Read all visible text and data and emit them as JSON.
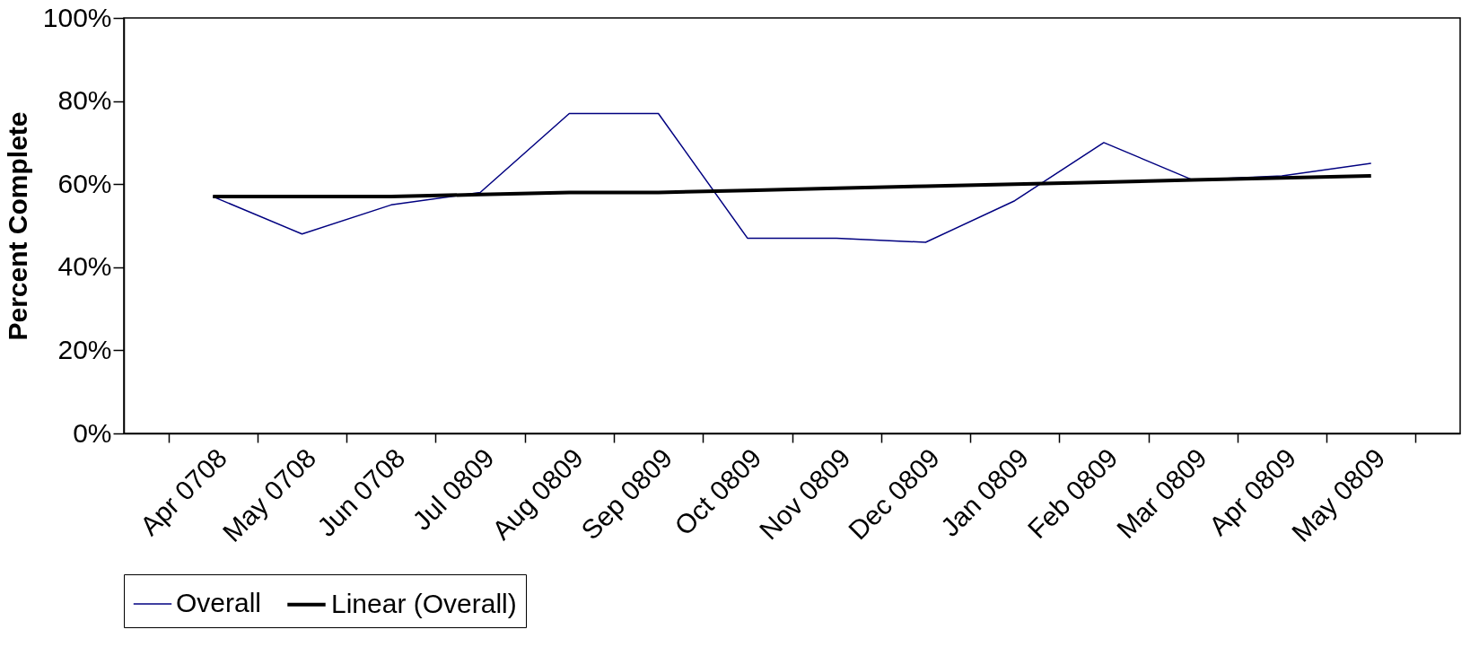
{
  "chart_data": {
    "type": "line",
    "ylabel": "Percent Complete",
    "categories": [
      "Apr 0708",
      "May 0708",
      "Jun 0708",
      "Jul 0809",
      "Aug 0809",
      "Sep 0809",
      "Oct 0809",
      "Nov 0809",
      "Dec 0809",
      "Jan 0809",
      "Feb 0809",
      "Mar 0809",
      "Apr 0809",
      "May 0809"
    ],
    "series": [
      {
        "name": "Overall",
        "color": "#000080",
        "values": [
          57,
          48,
          55,
          58,
          77,
          77,
          47,
          47,
          46,
          56,
          70,
          61,
          62,
          65
        ]
      },
      {
        "name": "Linear (Overall)",
        "color": "#000000",
        "values": [
          57,
          57,
          57,
          57.5,
          58,
          58,
          58.5,
          59,
          59.5,
          60,
          60.5,
          61,
          61.5,
          62
        ]
      }
    ],
    "ylim": [
      0,
      100
    ],
    "yticks": [
      {
        "value": 0,
        "label": "0%"
      },
      {
        "value": 20,
        "label": "20%"
      },
      {
        "value": 40,
        "label": "40%"
      },
      {
        "value": 60,
        "label": "60%"
      },
      {
        "value": 80,
        "label": "80%"
      },
      {
        "value": 100,
        "label": "100%"
      }
    ],
    "grid": false,
    "legend": "bottom"
  }
}
